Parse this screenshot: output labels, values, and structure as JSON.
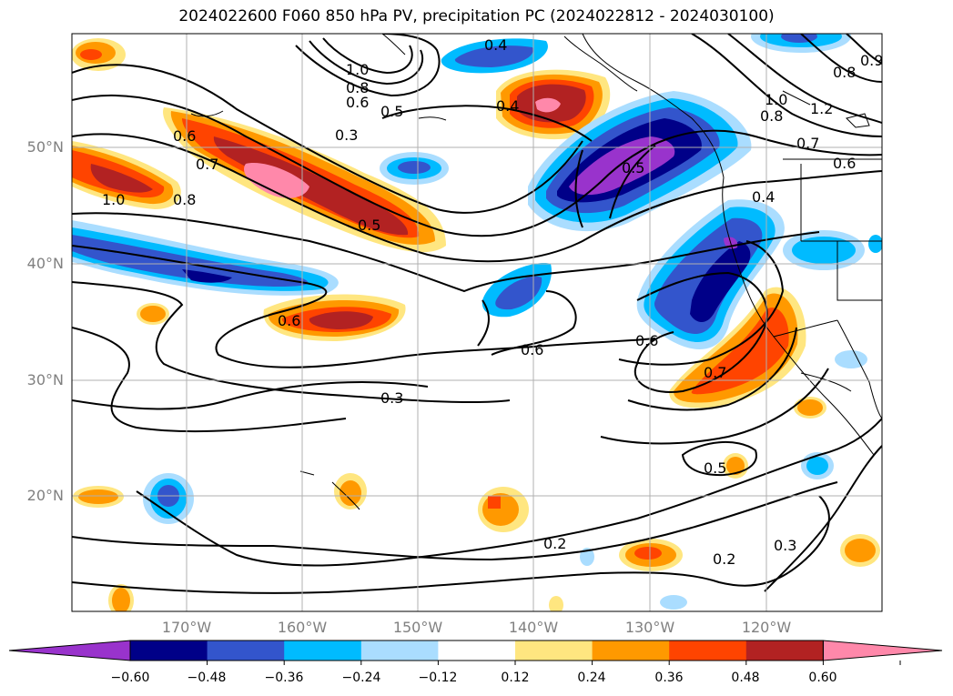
{
  "title": "2024022600 F060 850 hPa PV, precipitation PC (2024022812 - 2024030100)",
  "lat_labels": [
    "50°N",
    "40°N",
    "30°N",
    "20°N"
  ],
  "lon_labels": [
    "170°W",
    "160°W",
    "150°W",
    "140°W",
    "130°W",
    "120°W"
  ],
  "colorbar": {
    "ticks": [
      "−0.60",
      "−0.48",
      "−0.36",
      "−0.24",
      "−0.12",
      "0.12",
      "0.24",
      "0.36",
      "0.48",
      "0.60"
    ],
    "colors": [
      "#9933cc",
      "#000088",
      "#3355cc",
      "#00bbff",
      "#aaddff",
      "#ffffff",
      "#ffe680",
      "#ff9900",
      "#ff4400",
      "#b22222",
      "#ff88aa"
    ]
  },
  "contour_labels": [
    "1.0",
    "0.8",
    "0.6",
    "0.5",
    "0.4",
    "0.3",
    "0.6",
    "0.7",
    "0.8",
    "1.0",
    "0.5",
    "0.4",
    "0.5",
    "0.6",
    "0.6",
    "0.6",
    "0.7",
    "0.3",
    "0.5",
    "0.2",
    "0.2",
    "0.3",
    "1.0",
    "1.2",
    "0.8",
    "0.7",
    "0.6",
    "0.9",
    "0.8",
    "0.4"
  ]
}
